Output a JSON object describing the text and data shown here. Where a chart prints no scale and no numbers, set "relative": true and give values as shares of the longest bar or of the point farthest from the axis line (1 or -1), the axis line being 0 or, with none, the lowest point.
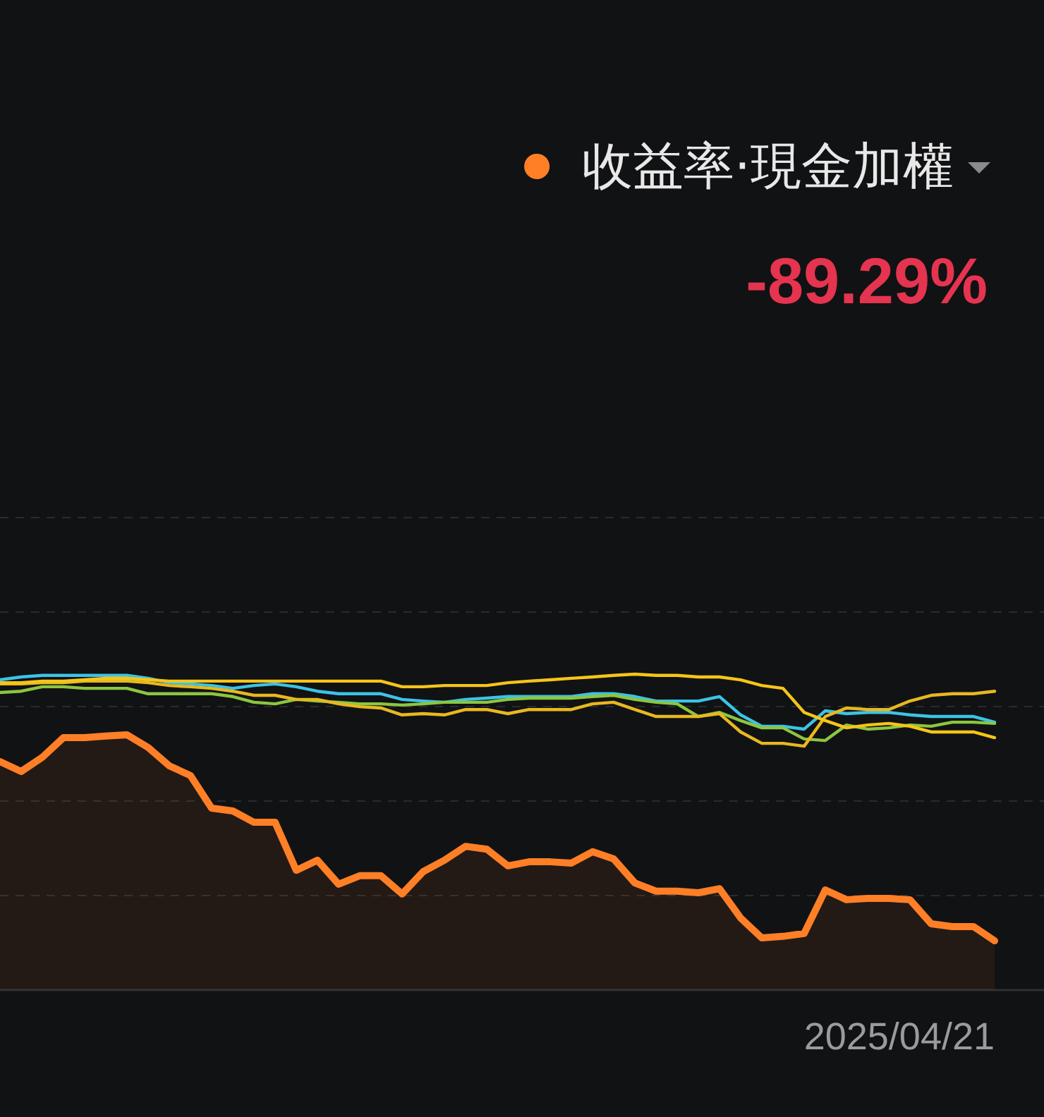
{
  "chart_data": {
    "type": "line",
    "relative": true,
    "grid": "y",
    "legend": "top right",
    "marker": "none",
    "line_style": "solid",
    "annotations": [
      "-89.29%",
      "2025/04/21"
    ],
    "categories": [
      null,
      null,
      null,
      null,
      null,
      null,
      null,
      null,
      null,
      null,
      null,
      null,
      null,
      null,
      null,
      null,
      null,
      null,
      null,
      null,
      null,
      null,
      null,
      null,
      null,
      null,
      null,
      null,
      null,
      null,
      null,
      null,
      null,
      null,
      null,
      null,
      null,
      null,
      null,
      null,
      null,
      null,
      null,
      null,
      null,
      null,
      null,
      null
    ],
    "series": [
      {
        "color": "#3cc3e6",
        "values": [
          0.982,
          0.991,
          0.996,
          0.996,
          0.996,
          0.996,
          0.996,
          0.987,
          0.973,
          0.969,
          0.964,
          0.955,
          0.964,
          0.969,
          0.96,
          0.946,
          0.938,
          0.938,
          0.938,
          0.92,
          0.915,
          0.911,
          0.92,
          0.924,
          0.929,
          0.929,
          0.929,
          0.929,
          0.938,
          0.938,
          0.929,
          0.915,
          0.915,
          0.915,
          0.929,
          0.871,
          0.835,
          0.835,
          0.826,
          0.884,
          0.875,
          0.879,
          0.879,
          0.871,
          0.866,
          0.866,
          0.866,
          0.848
        ]
      },
      {
        "color": "#8cc63f",
        "values": [
          0.942,
          0.946,
          0.96,
          0.96,
          0.955,
          0.955,
          0.955,
          0.938,
          0.938,
          0.938,
          0.938,
          0.929,
          0.911,
          0.906,
          0.92,
          0.915,
          0.911,
          0.906,
          0.906,
          0.902,
          0.906,
          0.911,
          0.911,
          0.911,
          0.92,
          0.924,
          0.924,
          0.924,
          0.929,
          0.933,
          0.92,
          0.911,
          0.906,
          0.866,
          0.879,
          0.853,
          0.83,
          0.83,
          0.795,
          0.79,
          0.839,
          0.826,
          0.83,
          0.839,
          0.835,
          0.848,
          0.848,
          0.844
        ]
      },
      {
        "color": "#e8b820",
        "values": [
          0.969,
          0.969,
          0.973,
          0.973,
          0.978,
          0.978,
          0.978,
          0.973,
          0.964,
          0.96,
          0.955,
          0.946,
          0.933,
          0.933,
          0.92,
          0.92,
          0.906,
          0.897,
          0.893,
          0.871,
          0.875,
          0.871,
          0.888,
          0.888,
          0.875,
          0.888,
          0.888,
          0.888,
          0.906,
          0.911,
          0.888,
          0.866,
          0.866,
          0.866,
          0.875,
          0.817,
          0.781,
          0.781,
          0.772,
          0.866,
          0.893,
          0.888,
          0.888,
          0.915,
          0.933,
          0.938,
          0.938,
          0.946
        ]
      },
      {
        "color": "#f5c518",
        "values": [
          0.973,
          0.973,
          0.978,
          0.978,
          0.982,
          0.987,
          0.987,
          0.982,
          0.978,
          0.978,
          0.978,
          0.978,
          0.978,
          0.978,
          0.978,
          0.978,
          0.978,
          0.978,
          0.978,
          0.96,
          0.96,
          0.964,
          0.964,
          0.964,
          0.973,
          0.978,
          0.982,
          0.987,
          0.991,
          0.996,
          1.0,
          0.996,
          0.996,
          0.991,
          0.991,
          0.982,
          0.964,
          0.955,
          0.879,
          0.853,
          0.83,
          0.839,
          0.844,
          0.835,
          0.817,
          0.817,
          0.817,
          0.799
        ]
      },
      {
        "type": "area",
        "name": "收益率·現金加權",
        "color": "#ff7f27",
        "values": [
          0.723,
          0.692,
          0.737,
          0.799,
          0.799,
          0.804,
          0.808,
          0.768,
          0.71,
          0.679,
          0.576,
          0.567,
          0.531,
          0.531,
          0.379,
          0.411,
          0.335,
          0.362,
          0.362,
          0.304,
          0.375,
          0.411,
          0.455,
          0.446,
          0.393,
          0.406,
          0.406,
          0.402,
          0.438,
          0.415,
          0.339,
          0.313,
          0.313,
          0.308,
          0.321,
          0.228,
          0.165,
          0.17,
          0.179,
          0.317,
          0.286,
          0.29,
          0.29,
          0.286,
          0.21,
          0.201,
          0.201,
          0.156
        ]
      }
    ]
  }
}
